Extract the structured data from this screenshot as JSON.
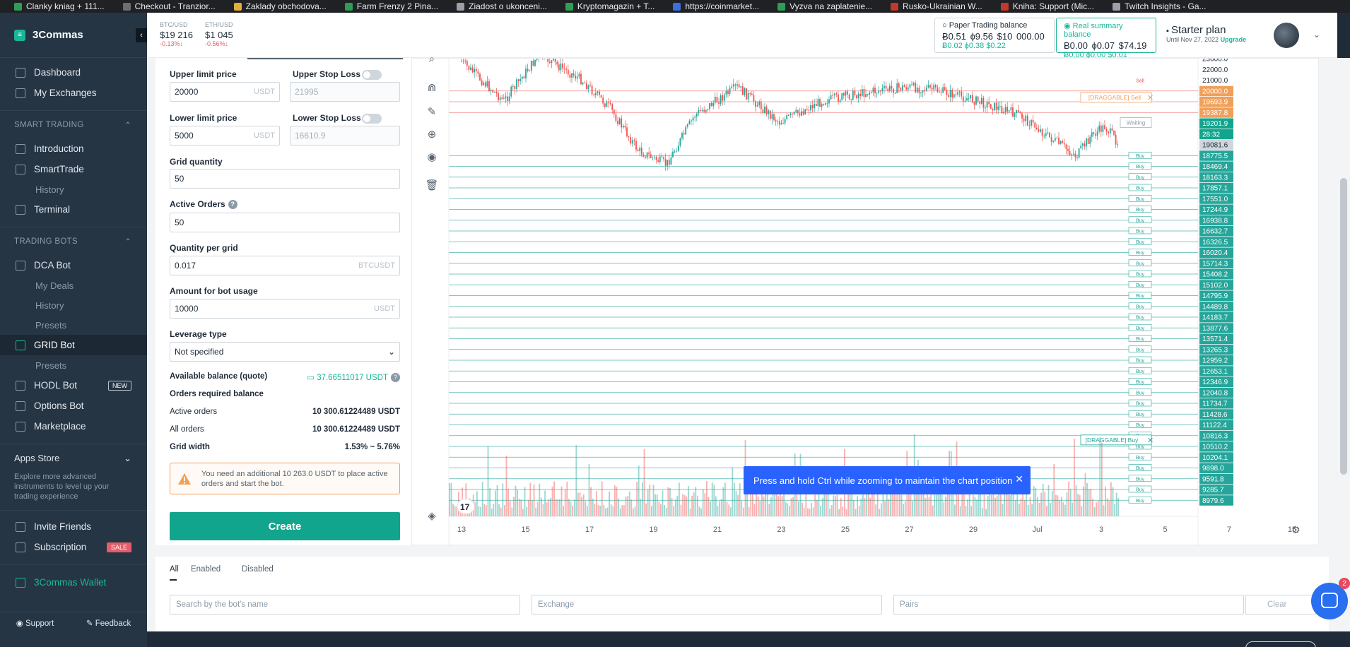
{
  "bookmarks": [
    {
      "label": "Clanky kniag + 111...",
      "color": "#2e9e57"
    },
    {
      "label": "Checkout - Tranzior...",
      "color": "#6b6f73"
    },
    {
      "label": "Zaklady obchodova...",
      "color": "#e0b13a"
    },
    {
      "label": "Farm Frenzy 2 Pina...",
      "color": "#2e9e57"
    },
    {
      "label": "Ziadost o ukonceni...",
      "color": "#9aa0a6"
    },
    {
      "label": "Kryptomagazin + T...",
      "color": "#2e9e57"
    },
    {
      "label": "https://coinmarket...",
      "color": "#3b6fe0"
    },
    {
      "label": "Vyzva na zaplatenie...",
      "color": "#2e9e57"
    },
    {
      "label": "Rusko-Ukrainian W...",
      "color": "#c0392b"
    },
    {
      "label": "Kniha: Support (Mic...",
      "color": "#c0392b"
    },
    {
      "label": "Twitch Insights - Ga...",
      "color": "#9aa0a6"
    }
  ],
  "sidebar": {
    "brand": "3Commas",
    "items_top": [
      {
        "label": "Dashboard",
        "icon": "dashboard-icon"
      },
      {
        "label": "My Exchanges",
        "icon": "exchange-icon"
      }
    ],
    "smart_trading": {
      "title": "SMART TRADING",
      "items": [
        {
          "label": "Introduction"
        },
        {
          "label": "SmartTrade"
        },
        {
          "label": "History",
          "sub": true
        },
        {
          "label": "Terminal"
        }
      ]
    },
    "trading_bots": {
      "title": "TRADING BOTS",
      "items": [
        {
          "label": "DCA Bot"
        },
        {
          "label": "My Deals",
          "sub": true
        },
        {
          "label": "History",
          "sub": true
        },
        {
          "label": "Presets",
          "sub": true
        },
        {
          "label": "GRID Bot",
          "active": true
        },
        {
          "label": "Presets",
          "sub": true
        },
        {
          "label": "HODL Bot",
          "badge": "NEW"
        },
        {
          "label": "Options Bot"
        },
        {
          "label": "Marketplace"
        }
      ]
    },
    "apps_store": {
      "title": "Apps Store",
      "desc": "Explore more advanced instruments to level up your trading experience"
    },
    "items_bottom": [
      {
        "label": "Invite Friends"
      },
      {
        "label": "Subscription",
        "badge": "SALE"
      }
    ],
    "wallet": "3Commas Wallet",
    "support": "Support",
    "feedback": "Feedback"
  },
  "header": {
    "btc": {
      "pair": "BTC/USD",
      "price": "$19 216",
      "change": "-0.13%↓"
    },
    "eth": {
      "pair": "ETH/USD",
      "price": "$1 045",
      "change": "-0.56%↓"
    },
    "paper": {
      "title": "Paper Trading balance",
      "main": "Ƀ0.51 ɸ9.56 $10 000.00",
      "sub": "Ƀ0.02 ɸ0.38 $0.22"
    },
    "real": {
      "title": "Real summary balance",
      "main": "Ƀ0.00 ɸ0.07 $74.19",
      "sub": "Ƀ0.00 ɸ0.00 $0.01"
    },
    "plan": {
      "title": "Starter plan",
      "until": "Until Nov 27, 2022",
      "upgrade": "Upgrade"
    }
  },
  "form": {
    "upper_limit_label": "Upper limit price",
    "upper_limit_value": "20000",
    "upper_stop_label": "Upper Stop Loss",
    "upper_stop_value": "21995",
    "lower_limit_label": "Lower limit price",
    "lower_limit_value": "5000",
    "lower_stop_label": "Lower Stop Loss",
    "lower_stop_value": "16610.9",
    "unit_usdt": "USDT",
    "unit_btcusdt": "BTCUSDT",
    "grid_qty_label": "Grid quantity",
    "grid_qty_value": "50",
    "active_orders_label": "Active Orders",
    "active_orders_value": "50",
    "qty_per_grid_label": "Quantity per grid",
    "qty_per_grid_value": "0.017",
    "amount_label": "Amount for bot usage",
    "amount_value": "10000",
    "leverage_label": "Leverage type",
    "leverage_value": "Not specified",
    "available_label": "Available balance (quote)",
    "available_value": "37.66511017 USDT",
    "orders_required_label": "Orders required balance",
    "active_orders_row": "Active orders",
    "active_orders_amount": "10 300.61224489",
    "all_orders_row": "All orders",
    "all_orders_amount": "10 300.61224489",
    "grid_width_label": "Grid width",
    "grid_width_value": "1.53% ~ 5.76%",
    "warning": "You need an additional 10 263.0 USDT to place active orders and start the bot.",
    "create": "Create"
  },
  "chart": {
    "x_ticks": [
      "13",
      "15",
      "17",
      "19",
      "21",
      "23",
      "25",
      "27",
      "29",
      "Jul",
      "3",
      "5",
      "7",
      "15:"
    ],
    "price_labels": [
      {
        "v": "23000.0",
        "kind": "plain"
      },
      {
        "v": "22000.0",
        "kind": "plain"
      },
      {
        "v": "21000.0",
        "kind": "plain"
      },
      {
        "v": "20000.0",
        "kind": "sell"
      },
      {
        "v": "19693.9",
        "kind": "sell"
      },
      {
        "v": "19387.8",
        "kind": "sell"
      },
      {
        "v": "19201.9",
        "kind": "current"
      },
      {
        "v": "28:32",
        "kind": "current"
      },
      {
        "v": "19081.6",
        "kind": "gray"
      },
      {
        "v": "18775.5",
        "kind": "buy"
      },
      {
        "v": "18469.4",
        "kind": "buy"
      },
      {
        "v": "18163.3",
        "kind": "buy"
      },
      {
        "v": "17857.1",
        "kind": "buy"
      },
      {
        "v": "17551.0",
        "kind": "buy"
      },
      {
        "v": "17244.9",
        "kind": "buy"
      },
      {
        "v": "16938.8",
        "kind": "buy"
      },
      {
        "v": "16632.7",
        "kind": "buy"
      },
      {
        "v": "16326.5",
        "kind": "buy"
      },
      {
        "v": "16020.4",
        "kind": "buy"
      },
      {
        "v": "15714.3",
        "kind": "buy"
      },
      {
        "v": "15408.2",
        "kind": "buy"
      },
      {
        "v": "15102.0",
        "kind": "buy"
      },
      {
        "v": "14795.9",
        "kind": "buy"
      },
      {
        "v": "14489.8",
        "kind": "buy"
      },
      {
        "v": "14183.7",
        "kind": "buy"
      },
      {
        "v": "13877.6",
        "kind": "buy"
      },
      {
        "v": "13571.4",
        "kind": "buy"
      },
      {
        "v": "13265.3",
        "kind": "buy"
      },
      {
        "v": "12959.2",
        "kind": "buy"
      },
      {
        "v": "12653.1",
        "kind": "buy"
      },
      {
        "v": "12346.9",
        "kind": "buy"
      },
      {
        "v": "12040.8",
        "kind": "buy"
      },
      {
        "v": "11734.7",
        "kind": "buy"
      },
      {
        "v": "11428.6",
        "kind": "buy"
      },
      {
        "v": "11122.4",
        "kind": "buy"
      },
      {
        "v": "10816.3",
        "kind": "buy"
      },
      {
        "v": "10510.2",
        "kind": "buy"
      },
      {
        "v": "10204.1",
        "kind": "buy"
      },
      {
        "v": "9898.0",
        "kind": "buy"
      },
      {
        "v": "9591.8",
        "kind": "buy"
      },
      {
        "v": "9285.7",
        "kind": "buy"
      },
      {
        "v": "8979.6",
        "kind": "buy"
      }
    ],
    "draggable_sell": "[DRAGGABLE] Sell",
    "draggable_buy": "[DRAGGABLE] Buy",
    "sell_tag": "Sell",
    "buy_tag": "Buy",
    "waiting": "Waiting",
    "toast": "Press and hold Ctrl while zooming to maintain the chart position",
    "colors": {
      "buy": "#26a69a",
      "sell": "#ef5350",
      "sell_label": "#f0a05a"
    }
  },
  "bots": {
    "tabs": [
      "All",
      "Enabled",
      "Disabled"
    ],
    "search_placeholder": "Search by the bot's name",
    "exchange_placeholder": "Exchange",
    "pairs_placeholder": "Pairs",
    "clear": "Clear"
  },
  "chat_count": "2"
}
